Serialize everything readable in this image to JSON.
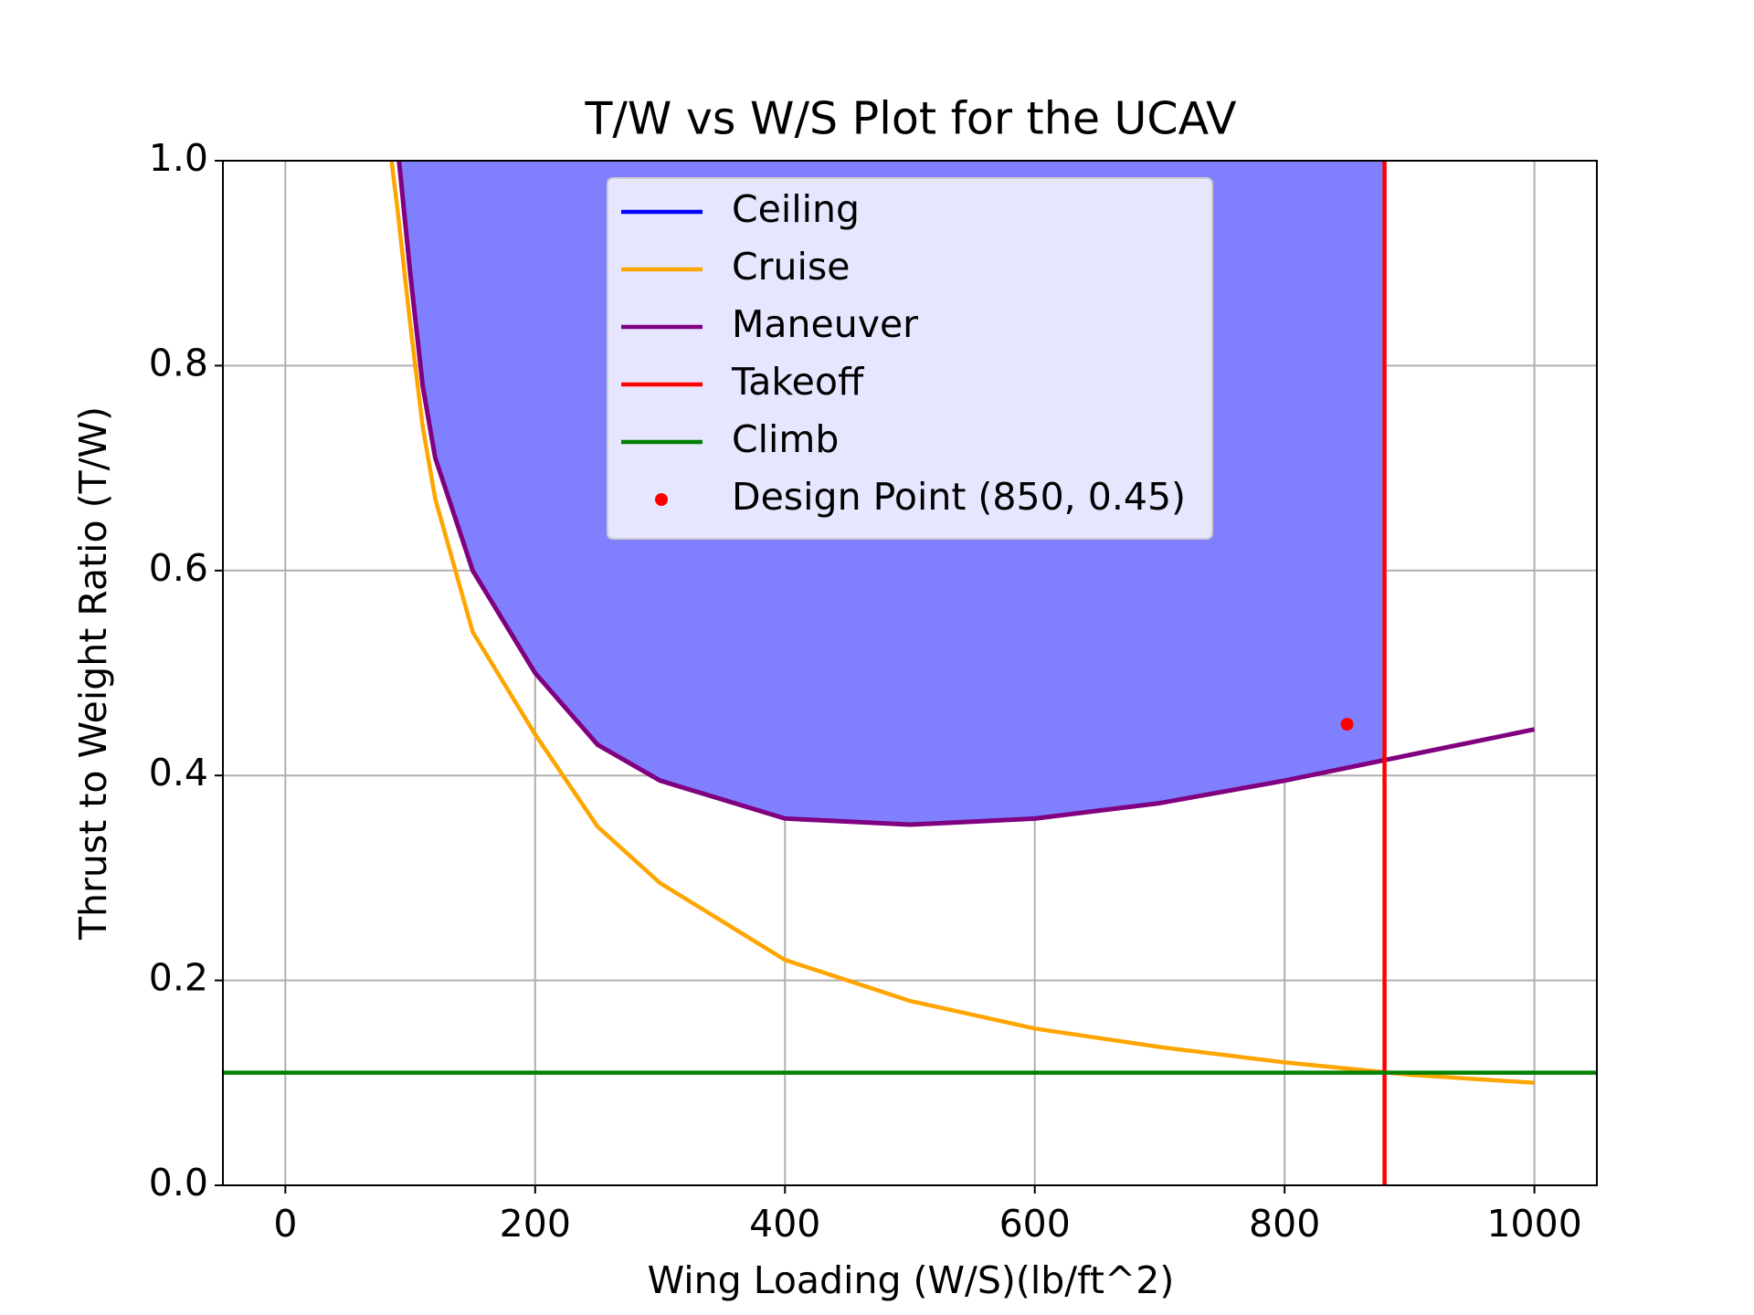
{
  "chart_data": {
    "type": "line",
    "title": "T/W vs W/S Plot for the UCAV",
    "x_label": "Wing Loading (W/S)(lb/ft^2)",
    "y_label": "Thrust to Weight Ratio (T/W)",
    "xlim": [
      -50,
      1050
    ],
    "ylim": [
      0,
      1
    ],
    "xticks": [
      0,
      200,
      400,
      600,
      800,
      1000
    ],
    "yticks": [
      {
        "value": 0,
        "label": "0.0"
      },
      0.2,
      0.4,
      0.6,
      0.8,
      {
        "value": 1,
        "label": "1.0"
      }
    ],
    "grid": true,
    "legend_position": "upper center",
    "fill_color": "#8080ff",
    "series": [
      {
        "name": "Ceiling",
        "color": "#0000ff",
        "x": [
          85,
          90,
          100,
          110,
          120,
          150,
          200,
          250,
          300,
          400,
          500,
          600,
          700,
          800,
          900,
          1000
        ],
        "values": [
          1.0,
          0.95,
          0.84,
          0.74,
          0.67,
          0.54,
          0.44,
          0.35,
          0.295,
          0.22,
          0.18,
          0.153,
          0.135,
          0.12,
          0.108,
          0.1
        ]
      },
      {
        "name": "Cruise",
        "color": "#ffa500",
        "x": [
          85,
          90,
          100,
          110,
          120,
          150,
          200,
          250,
          300,
          400,
          500,
          600,
          700,
          800,
          900,
          1000
        ],
        "values": [
          1.0,
          0.95,
          0.84,
          0.74,
          0.67,
          0.54,
          0.44,
          0.35,
          0.295,
          0.22,
          0.18,
          0.153,
          0.135,
          0.12,
          0.108,
          0.1
        ]
      },
      {
        "name": "Maneuver",
        "color": "#800080",
        "x": [
          91,
          100,
          110,
          120,
          150,
          200,
          250,
          300,
          400,
          500,
          600,
          700,
          800,
          900,
          1000
        ],
        "values": [
          1.0,
          0.89,
          0.78,
          0.71,
          0.6,
          0.5,
          0.43,
          0.395,
          0.358,
          0.352,
          0.358,
          0.373,
          0.395,
          0.42,
          0.445
        ]
      },
      {
        "name": "Takeoff",
        "color": "#ff0000",
        "vline": 880
      },
      {
        "name": "Climb",
        "color": "#008000",
        "hline": 0.11
      },
      {
        "name": "Design Point (850, 0.45)",
        "color": "#ff0000",
        "point": [
          850,
          0.45
        ]
      }
    ]
  }
}
